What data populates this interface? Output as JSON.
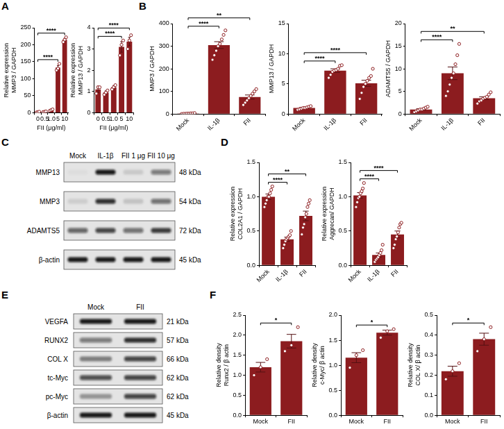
{
  "panel_labels": [
    "A",
    "B",
    "C",
    "D",
    "E",
    "F"
  ],
  "chart_data": [
    {
      "type": "bar",
      "y_label": [
        "Relative expression",
        "MMP3 / GAPDH"
      ],
      "x_label": "FII (μg/ml)",
      "categories": [
        "0",
        "0.5",
        "1.0",
        "5",
        "10"
      ],
      "values": [
        2,
        3,
        8,
        133,
        215
      ],
      "errors": [
        1,
        1,
        2,
        6,
        4
      ],
      "points": [
        [
          1,
          2,
          3
        ],
        [
          2,
          3,
          4
        ],
        [
          6,
          8,
          10
        ],
        [
          125,
          130,
          144
        ],
        [
          208,
          215,
          222
        ]
      ],
      "color": "#8c1c1f",
      "ylim": [
        0,
        250
      ],
      "yticks": [
        0,
        50,
        100,
        150,
        200,
        250
      ],
      "grid": false,
      "significance": [
        {
          "from": "0",
          "to": "5",
          "label": "****"
        },
        {
          "from": "0",
          "to": "10",
          "label": "****"
        }
      ]
    },
    {
      "type": "bar",
      "y_label": [
        "Relative expression",
        "MMP13 / GAPDH"
      ],
      "x_label": "FII (μg/ml)",
      "categories": [
        "0",
        "0.5",
        "1.0",
        "5",
        "10"
      ],
      "values": [
        1.1,
        0.95,
        1.2,
        3.1,
        3.35
      ],
      "errors": [
        0.15,
        0.08,
        0.08,
        0.25,
        0.2
      ],
      "points": [
        [
          0.9,
          1.2,
          1.2
        ],
        [
          0.85,
          0.95,
          1.05
        ],
        [
          1.1,
          1.2,
          1.3
        ],
        [
          2.7,
          3.2,
          3.4
        ],
        [
          3.0,
          3.4,
          3.65
        ]
      ],
      "color": "#8c1c1f",
      "ylim": [
        0,
        4
      ],
      "yticks": [
        0,
        1,
        2,
        3,
        4
      ],
      "grid": false,
      "significance": [
        {
          "from": "0",
          "to": "5",
          "label": "****"
        },
        {
          "from": "0",
          "to": "10",
          "label": "****"
        }
      ]
    },
    {
      "type": "bar",
      "y_label": "MMP3 / GAPDH",
      "categories": [
        "Mock",
        "IL-1β",
        "FII"
      ],
      "values": [
        2,
        305,
        75
      ],
      "errors": [
        1,
        15,
        9
      ],
      "points": [
        [
          0,
          1,
          1,
          2,
          2,
          3,
          3,
          4
        ],
        [
          240,
          260,
          280,
          300,
          310,
          330,
          350,
          370
        ],
        [
          40,
          50,
          60,
          70,
          80,
          90,
          100,
          110
        ]
      ],
      "color": "#8c1c1f",
      "ylim": [
        0,
        400
      ],
      "yticks": [
        0,
        100,
        200,
        300,
        400
      ],
      "grid": false,
      "significance": [
        {
          "from": "Mock",
          "to": "IL-1β",
          "label": "****"
        },
        {
          "from": "Mock",
          "to": "FII",
          "label": "**"
        }
      ]
    },
    {
      "type": "bar",
      "y_label": "MMP13 / GAPDH",
      "categories": [
        "Mock",
        "IL-1β",
        "FII"
      ],
      "values": [
        1,
        7.2,
        5.1
      ],
      "errors": [
        0.1,
        0.3,
        0.5
      ],
      "points": [
        [
          0.7,
          0.8,
          0.9,
          1.0,
          1.0,
          1.1,
          1.2,
          1.3
        ],
        [
          6.0,
          6.5,
          7.0,
          7.2,
          7.3,
          7.5,
          8.0,
          8.1
        ],
        [
          2.5,
          3.5,
          4.5,
          5.0,
          5.5,
          6.0,
          6.3,
          7.5
        ]
      ],
      "color": "#8c1c1f",
      "ylim": [
        0,
        15
      ],
      "yticks": [
        0,
        5,
        10,
        15
      ],
      "grid": false,
      "significance": [
        {
          "from": "Mock",
          "to": "IL-1β",
          "label": "****"
        },
        {
          "from": "Mock",
          "to": "FII",
          "label": "****"
        }
      ]
    },
    {
      "type": "bar",
      "y_label": "ADAMTS5 / GAPDH",
      "categories": [
        "Mock",
        "IL-1β",
        "FII"
      ],
      "values": [
        1,
        9,
        3.5
      ],
      "errors": [
        0.15,
        1.4,
        0.3
      ],
      "points": [
        [
          0.4,
          0.6,
          0.8,
          1.0,
          1.0,
          1.2,
          1.4,
          1.6
        ],
        [
          4,
          5,
          6.5,
          8,
          9,
          11,
          13,
          15.5
        ],
        [
          2.3,
          2.8,
          3.0,
          3.4,
          3.6,
          3.8,
          4.3,
          4.8
        ]
      ],
      "color": "#8c1c1f",
      "ylim": [
        0,
        20
      ],
      "yticks": [
        0,
        5,
        10,
        15,
        20
      ],
      "grid": false,
      "significance": [
        {
          "from": "Mock",
          "to": "IL-1β",
          "label": "****"
        },
        {
          "from": "Mock",
          "to": "FII",
          "label": "**"
        }
      ]
    },
    {
      "type": "bar",
      "y_label": [
        "Relative expression",
        "COL2A1 / GAPDH"
      ],
      "categories": [
        "Mock",
        "IL-1β",
        "FII"
      ],
      "values": [
        1.0,
        0.38,
        0.72
      ],
      "errors": [
        0.04,
        0.03,
        0.07
      ],
      "points": [
        [
          0.85,
          0.9,
          0.95,
          1.0,
          1.0,
          1.05,
          1.1,
          1.15
        ],
        [
          0.25,
          0.3,
          0.35,
          0.38,
          0.4,
          0.42,
          0.44,
          0.5
        ],
        [
          0.45,
          0.55,
          0.6,
          0.7,
          0.75,
          0.85,
          0.9,
          0.95
        ]
      ],
      "color": "#8c1c1f",
      "ylim": [
        0,
        1.5
      ],
      "yticks": [
        {
          "value": 0,
          "label": "0.0"
        },
        0.5,
        {
          "value": 1,
          "label": "1.0"
        },
        1.5
      ],
      "grid": false,
      "significance": [
        {
          "from": "Mock",
          "to": "IL-1β",
          "label": "****"
        },
        {
          "from": "Mock",
          "to": "FII",
          "label": "**"
        }
      ]
    },
    {
      "type": "bar",
      "y_label": [
        "Relative expression",
        "Aggrecan/ GAPDH"
      ],
      "categories": [
        "Mock",
        "IL-1β",
        "FII"
      ],
      "values": [
        1.02,
        0.15,
        0.45
      ],
      "errors": [
        0.04,
        0.03,
        0.05
      ],
      "points": [
        [
          0.85,
          0.92,
          0.98,
          1.0,
          1.05,
          1.08,
          1.12,
          1.2
        ],
        [
          0.05,
          0.08,
          0.1,
          0.12,
          0.15,
          0.18,
          0.22,
          0.3
        ],
        [
          0.25,
          0.3,
          0.38,
          0.42,
          0.48,
          0.55,
          0.6,
          0.62
        ]
      ],
      "color": "#8c1c1f",
      "ylim": [
        0,
        1.5
      ],
      "yticks": [
        {
          "value": 0,
          "label": "0.0"
        },
        0.5,
        {
          "value": 1,
          "label": "1.0"
        },
        1.5
      ],
      "grid": false,
      "significance": [
        {
          "from": "Mock",
          "to": "IL-1β",
          "label": "****"
        },
        {
          "from": "Mock",
          "to": "FII",
          "label": "****"
        }
      ]
    },
    {
      "type": "bar",
      "y_label": [
        "Relative density",
        "Runx2 / β actin"
      ],
      "categories": [
        "Mock",
        "FII"
      ],
      "values": [
        1.2,
        1.85
      ],
      "errors": [
        0.12,
        0.17
      ],
      "points": [
        [
          1.0,
          1.2,
          1.4
        ],
        [
          1.6,
          1.75,
          2.2
        ]
      ],
      "color": "#8c1c1f",
      "ylim": [
        0,
        2.5
      ],
      "yticks": [
        {
          "value": 0,
          "label": "0.0"
        },
        0.5,
        {
          "value": 1,
          "label": "1.0"
        },
        1.5,
        {
          "value": 2,
          "label": "2.0"
        },
        2.5
      ],
      "grid": false,
      "significance": [
        {
          "from": "Mock",
          "to": "FII",
          "label": "*"
        }
      ]
    },
    {
      "type": "bar",
      "y_label": [
        "Relative density",
        "c-Myc/ β actin"
      ],
      "categories": [
        "Mock",
        "FII"
      ],
      "values": [
        1.15,
        1.65
      ],
      "errors": [
        0.1,
        0.05
      ],
      "points": [
        [
          0.95,
          1.2,
          1.3
        ],
        [
          1.55,
          1.68,
          1.72
        ]
      ],
      "color": "#8c1c1f",
      "ylim": [
        0,
        2.0
      ],
      "yticks": [
        {
          "value": 0,
          "label": "0.0"
        },
        0.5,
        {
          "value": 1,
          "label": "1.0"
        },
        1.5,
        {
          "value": 2,
          "label": "2.0"
        }
      ],
      "grid": false,
      "significance": [
        {
          "from": "Mock",
          "to": "FII",
          "label": "*"
        }
      ]
    },
    {
      "type": "bar",
      "y_label": [
        "Relative density",
        "COL X/ β actin"
      ],
      "categories": [
        "Mock",
        "FII"
      ],
      "values": [
        0.22,
        0.38
      ],
      "errors": [
        0.025,
        0.03
      ],
      "points": [
        [
          0.18,
          0.22,
          0.26
        ],
        [
          0.32,
          0.38,
          0.44
        ]
      ],
      "color": "#8c1c1f",
      "ylim": [
        0,
        0.5
      ],
      "yticks": [
        {
          "value": 0,
          "label": "0.0"
        },
        0.1,
        0.2,
        0.3,
        0.4,
        0.5
      ],
      "grid": false,
      "significance": [
        {
          "from": "Mock",
          "to": "FII",
          "label": "*"
        }
      ]
    }
  ],
  "blots": [
    {
      "lanes": [
        "Mock",
        "IL-1β",
        "FII 1 μg",
        "FII 10 μg"
      ],
      "rows": [
        {
          "name": "MMP13",
          "size": "48 kDa",
          "intensity": [
            0.03,
            0.95,
            0.12,
            0.5
          ]
        },
        {
          "name": "MMP3",
          "size": "54 kDa",
          "intensity": [
            0.1,
            0.85,
            0.15,
            0.55
          ]
        },
        {
          "name": "ADAMTS5",
          "size": "72 kDa",
          "intensity": [
            0.6,
            0.75,
            0.55,
            0.8
          ]
        },
        {
          "name": "β-actin",
          "size": "45 kDa",
          "intensity": [
            0.95,
            0.95,
            0.95,
            0.95
          ]
        }
      ]
    },
    {
      "lanes": [
        "Mock",
        "FII"
      ],
      "rows": [
        {
          "name": "VEGFA",
          "size": "21 kDa",
          "intensity": [
            0.95,
            0.95
          ]
        },
        {
          "name": "RUNX2",
          "size": "57 kDa",
          "intensity": [
            0.5,
            0.85
          ]
        },
        {
          "name": "COL X",
          "size": "66 kDa",
          "intensity": [
            0.45,
            0.75
          ]
        },
        {
          "name": "tc-Myc",
          "size": "62 kDa",
          "intensity": [
            0.7,
            0.75
          ]
        },
        {
          "name": "pc-Myc",
          "size": "62 kDa",
          "intensity": [
            0.35,
            0.75
          ]
        },
        {
          "name": "β-actin",
          "size": "45 kDa",
          "intensity": [
            0.95,
            0.95
          ]
        }
      ]
    }
  ]
}
